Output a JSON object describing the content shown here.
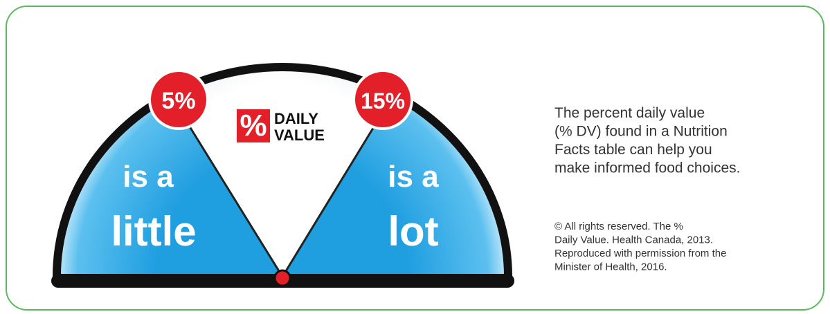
{
  "gauge": {
    "left_marker": "5%",
    "right_marker": "15%",
    "badge_line1": "DAILY",
    "badge_line2": "VALUE",
    "left_label_top": "is a",
    "left_label_bottom": "little",
    "right_label_top": "is a",
    "right_label_bottom": "lot"
  },
  "description": {
    "lines": [
      "The percent daily value",
      "(% DV) found in a Nutrition",
      "Facts table can help you",
      "make informed food choices."
    ]
  },
  "credit": {
    "lines": [
      "© All rights reserved. The %",
      "Daily Value. Health Canada, 2013.",
      "Reproduced with permission from the",
      "Minister of Health, 2016."
    ]
  }
}
